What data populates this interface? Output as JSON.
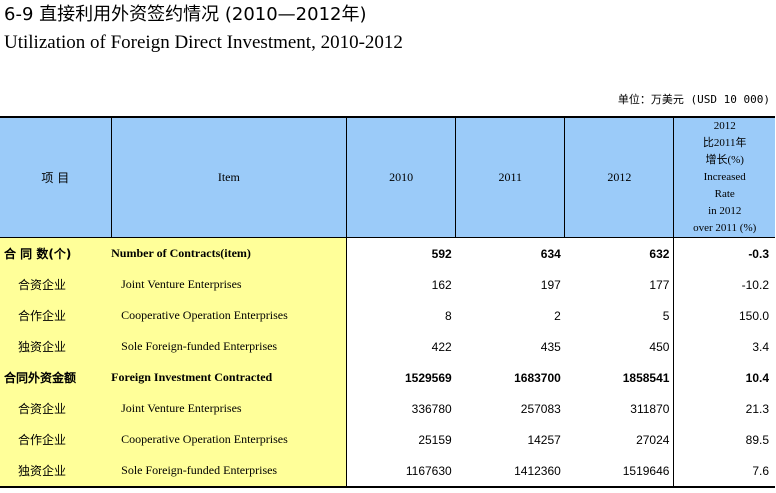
{
  "title": {
    "cn": "6-9  直接利用外资签约情况 (2010—2012年)",
    "en": "Utilization of Foreign Direct Investment, 2010-2012"
  },
  "unit": "单位：万美元  (USD 10 000)",
  "header": {
    "item_cn": "项  目",
    "item_en": "Item",
    "years": [
      "2010",
      "2011",
      "2012"
    ],
    "rate_lines": [
      "2012",
      "比2011年",
      "增长(%)",
      "Increased",
      "Rate",
      "in 2012",
      "over 2011 (%)"
    ]
  },
  "rows": [
    {
      "cn": "合  同  数(个)",
      "en": "Number of Contracts(item)",
      "v2010": "592",
      "v2011": "634",
      "v2012": "632",
      "rate": "-0.3",
      "bold": true
    },
    {
      "cn": "合资企业",
      "en": "Joint Venture Enterprises",
      "v2010": "162",
      "v2011": "197",
      "v2012": "177",
      "rate": "-10.2",
      "bold": false
    },
    {
      "cn": "合作企业",
      "en": "Cooperative Operation Enterprises",
      "v2010": "8",
      "v2011": "2",
      "v2012": "5",
      "rate": "150.0",
      "bold": false
    },
    {
      "cn": "独资企业",
      "en": "Sole Foreign-funded Enterprises",
      "v2010": "422",
      "v2011": "435",
      "v2012": "450",
      "rate": "3.4",
      "bold": false
    },
    {
      "cn": "合同外资金额",
      "en": "Foreign Investment Contracted",
      "v2010": "1529569",
      "v2011": "1683700",
      "v2012": "1858541",
      "rate": "10.4",
      "bold": true
    },
    {
      "cn": "合资企业",
      "en": "Joint Venture Enterprises",
      "v2010": "336780",
      "v2011": "257083",
      "v2012": "311870",
      "rate": "21.3",
      "bold": false
    },
    {
      "cn": "合作企业",
      "en": "Cooperative Operation Enterprises",
      "v2010": "25159",
      "v2011": "14257",
      "v2012": "27024",
      "rate": "89.5",
      "bold": false
    },
    {
      "cn": "独资企业",
      "en": "Sole Foreign-funded Enterprises",
      "v2010": "1167630",
      "v2011": "1412360",
      "v2012": "1519646",
      "rate": "7.6",
      "bold": false
    }
  ]
}
